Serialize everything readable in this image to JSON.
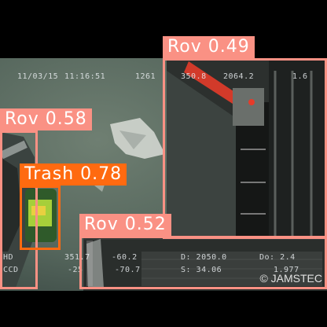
{
  "colors": {
    "rov": "#fa9184",
    "trash": "#ff6a10"
  },
  "overlay": {
    "date": "11/03/15",
    "time": "11:16:51",
    "frame": "1261",
    "depth_left": "350.8",
    "depth_right": "2064.2",
    "corner_value": "1.6",
    "hd": "HD",
    "ccd": "CCD",
    "row1_a": "351.7",
    "row1_b": "-60.2",
    "row1_d": "D: 2050.0",
    "row1_do": "Do: 2.4",
    "row2_a": "-25",
    "row2_b": "-70.7",
    "row2_s": "S: 34.06",
    "row2_c": "1.977",
    "credit": "© JAMSTEC"
  },
  "detections": [
    {
      "label": "Rov 0.49",
      "class": "rov"
    },
    {
      "label": "Rov 0.58",
      "class": "rov"
    },
    {
      "label": "Trash 0.78",
      "class": "trash"
    },
    {
      "label": "Rov 0.52",
      "class": "rov"
    }
  ]
}
